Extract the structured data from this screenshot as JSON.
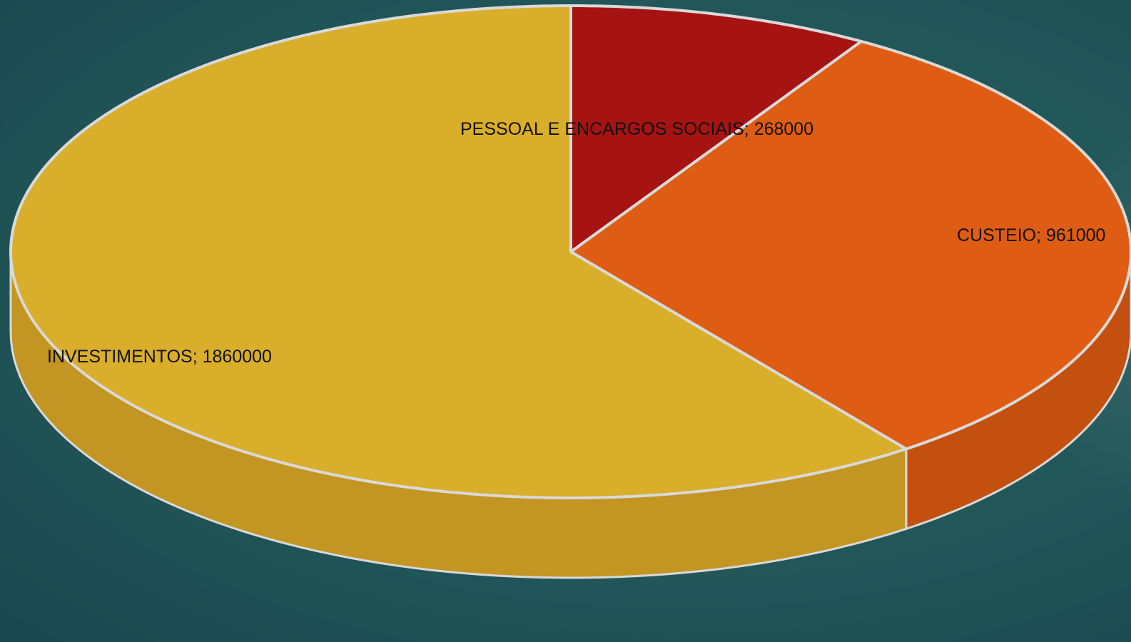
{
  "chart_data": {
    "type": "pie",
    "style": "3d",
    "title": "",
    "start_angle_deg": 0,
    "direction": "clockwise",
    "label_format": "{category}; {value}",
    "slices": [
      {
        "category": "PESSOAL E ENCARGOS SOCIAIS",
        "value": 268000,
        "color": "#a51313",
        "side_color": "#8a1010"
      },
      {
        "category": "CUSTEIO",
        "value": 961000,
        "color": "#de5c13",
        "side_color": "#c4500f"
      },
      {
        "category": "INVESTIMENTOS",
        "value": 1860000,
        "color": "#d9ae2a",
        "side_color": "#c39522"
      }
    ],
    "legend": "none",
    "separator_color": "#d9d9d9"
  },
  "labels": [
    {
      "text": "PESSOAL E ENCARGOS SOCIAIS; 268000"
    },
    {
      "text": "CUSTEIO; 961000"
    },
    {
      "text": "INVESTIMENTOS; 1860000"
    }
  ],
  "background": {
    "color_center": "#2f6d6b",
    "color_edge": "#1a474d"
  }
}
